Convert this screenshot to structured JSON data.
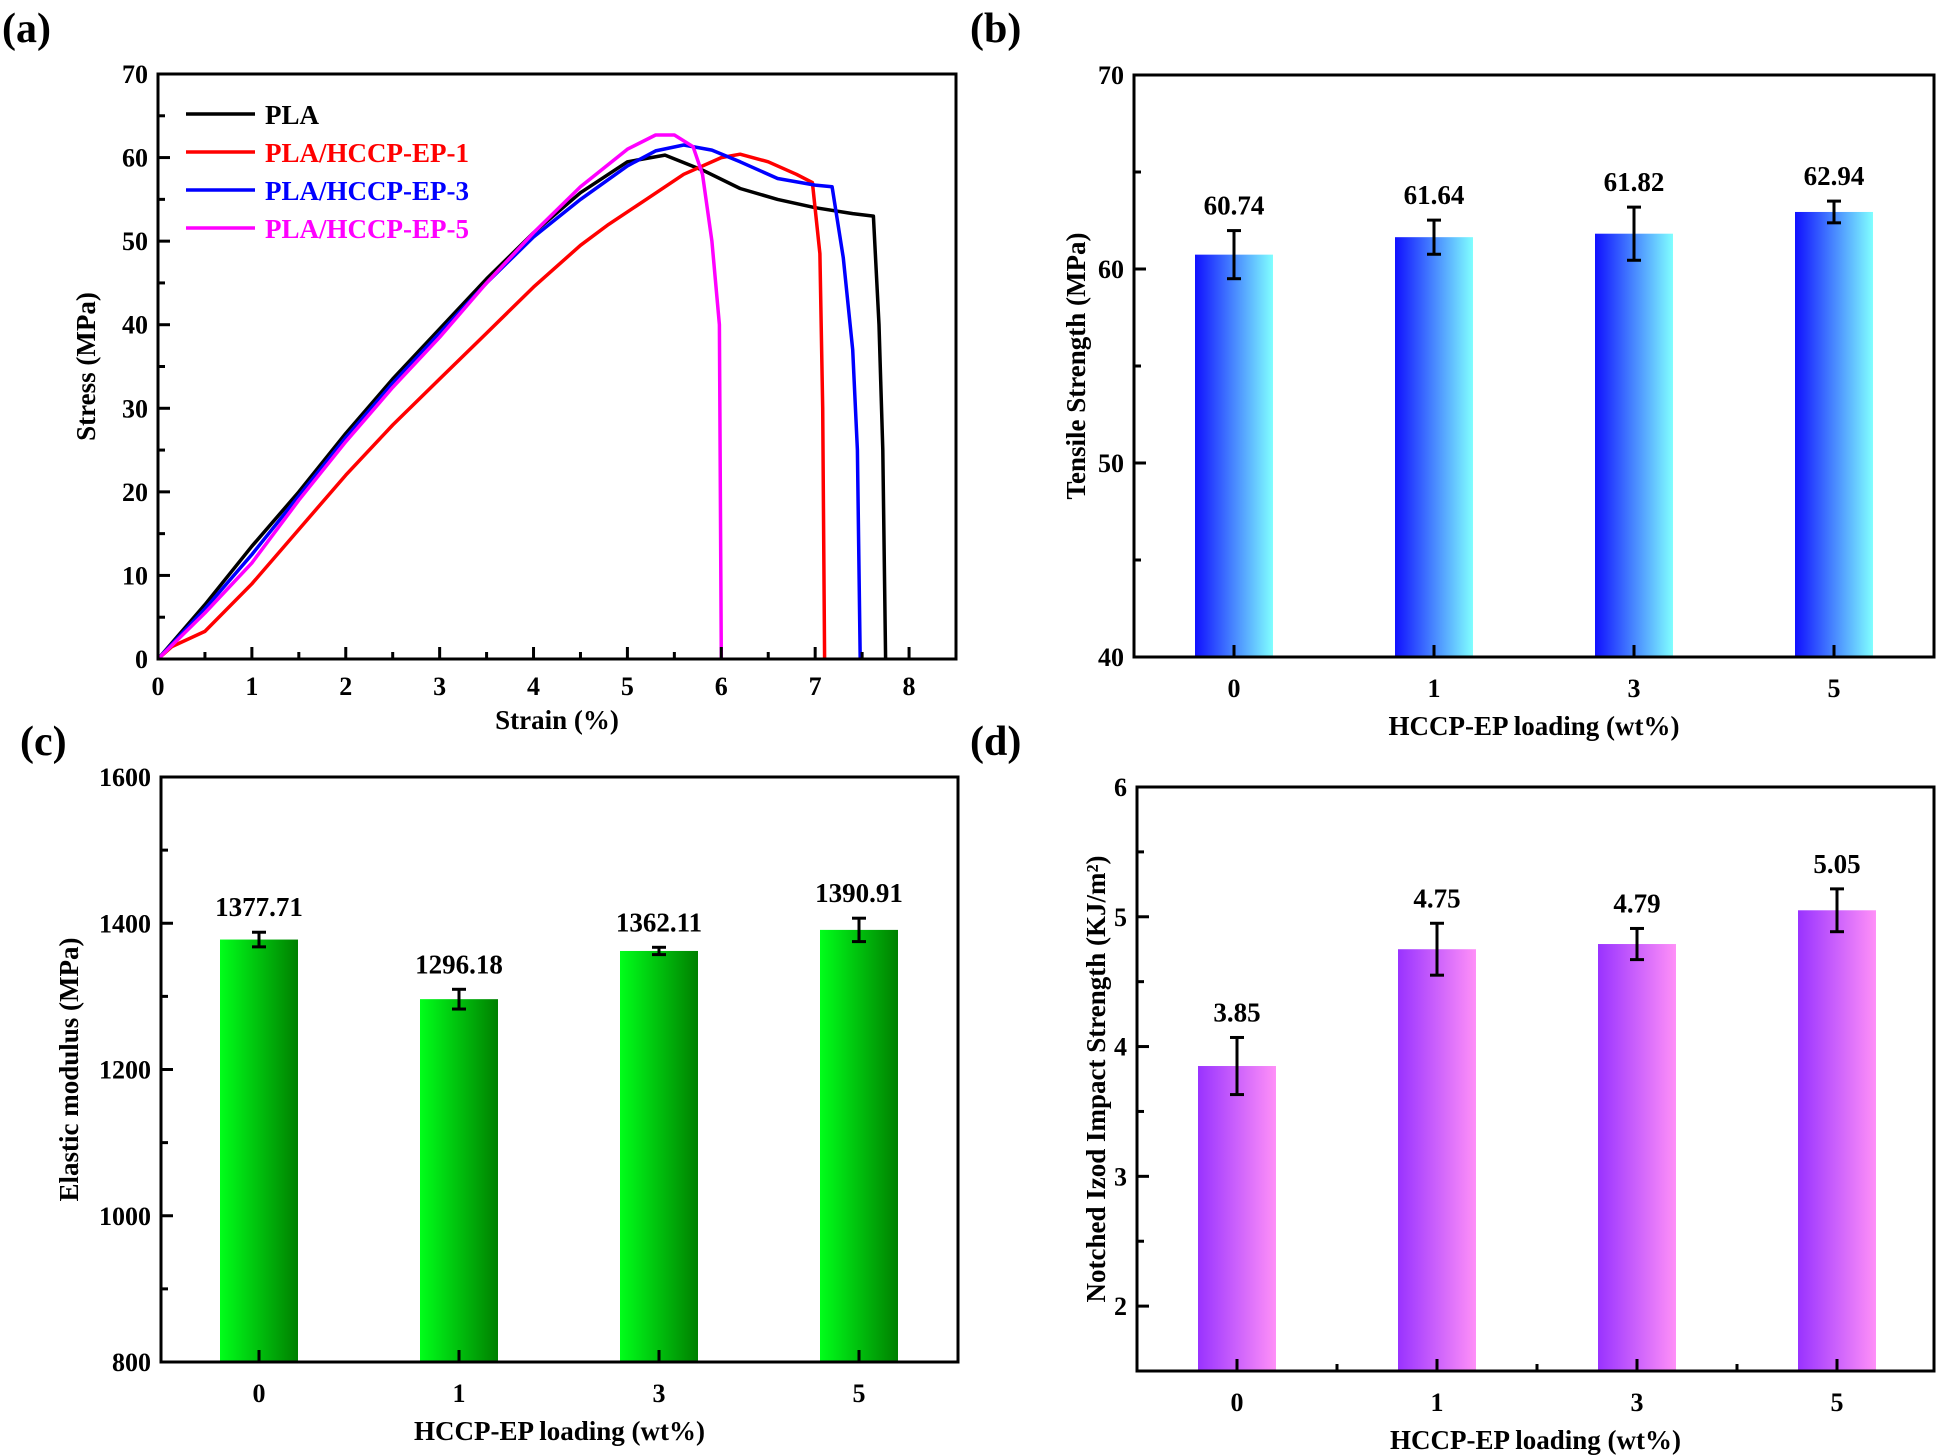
{
  "figure": {
    "panel_labels": [
      "(a)",
      "(b)",
      "(c)",
      "(d)"
    ]
  },
  "chart_data": [
    {
      "id": "a",
      "type": "line",
      "xlabel": "Strain (%)",
      "ylabel": "Stress (MPa)",
      "xlim": [
        0,
        8.5
      ],
      "ylim": [
        0,
        70
      ],
      "xticks": [
        0,
        1,
        2,
        3,
        4,
        5,
        6,
        7,
        8
      ],
      "yticks": [
        0,
        10,
        20,
        30,
        40,
        50,
        60,
        70
      ],
      "grid": false,
      "legend_position": "top-left",
      "series": [
        {
          "name": "PLA",
          "color": "#000000",
          "x": [
            0,
            0.5,
            1,
            1.5,
            2,
            2.5,
            3,
            3.5,
            4,
            4.5,
            5,
            5.4,
            5.8,
            6.2,
            6.6,
            7,
            7.4,
            7.62,
            7.68,
            7.72,
            7.75
          ],
          "y": [
            0,
            6.5,
            13.5,
            20,
            27,
            33.5,
            39.5,
            45.5,
            51,
            55.8,
            59.5,
            60.3,
            58.5,
            56.3,
            55,
            54,
            53.3,
            53,
            40,
            25,
            0
          ]
        },
        {
          "name": "PLA/HCCP-EP-1",
          "color": "#ff0000",
          "x": [
            0,
            0.15,
            0.5,
            1,
            1.5,
            2,
            2.5,
            3,
            3.5,
            4,
            4.5,
            4.8,
            5.2,
            5.6,
            6,
            6.2,
            6.5,
            6.8,
            6.97,
            7.05,
            7.08,
            7.1
          ],
          "y": [
            0,
            1.5,
            3.3,
            9,
            15.5,
            22,
            28,
            33.5,
            39,
            44.5,
            49.5,
            52,
            55,
            58,
            60,
            60.4,
            59.5,
            58,
            57,
            48.5,
            30,
            0
          ]
        },
        {
          "name": "PLA/HCCP-EP-3",
          "color": "#0000ff",
          "x": [
            0,
            0.5,
            1,
            1.5,
            2,
            2.5,
            3,
            3.5,
            4,
            4.5,
            5,
            5.3,
            5.6,
            5.9,
            6.2,
            6.6,
            7,
            7.18,
            7.3,
            7.4,
            7.45,
            7.48
          ],
          "y": [
            0,
            6,
            12.5,
            19.5,
            26.5,
            33,
            39,
            45,
            50.5,
            55,
            59,
            60.8,
            61.5,
            60.9,
            59.5,
            57.5,
            56.7,
            56.5,
            48,
            37,
            25,
            0
          ]
        },
        {
          "name": "PLA/HCCP-EP-5",
          "color": "#ff00ff",
          "x": [
            0,
            0.5,
            1,
            1.5,
            2,
            2.5,
            3,
            3.5,
            4,
            4.5,
            5,
            5.3,
            5.5,
            5.7,
            5.8,
            5.9,
            5.98,
            6
          ],
          "y": [
            0,
            5.5,
            11.5,
            19,
            26,
            32.5,
            38.5,
            45,
            51,
            56.5,
            61,
            62.7,
            62.7,
            61.3,
            58,
            50,
            40,
            0
          ]
        }
      ]
    },
    {
      "id": "b",
      "type": "bar",
      "xlabel": "HCCP-EP loading (wt%)",
      "ylabel": "Tensile Strength (MPa)",
      "categories": [
        "0",
        "1",
        "3",
        "5"
      ],
      "values": [
        60.74,
        61.64,
        61.82,
        62.94
      ],
      "errors": [
        1.24,
        0.88,
        1.37,
        0.56
      ],
      "value_labels": [
        "60.74",
        "61.64",
        "61.82",
        "62.94"
      ],
      "ylim": [
        40,
        70
      ],
      "yticks": [
        40,
        50,
        60,
        70
      ],
      "grid": false,
      "colors": {
        "start": "#1010ff",
        "end": "#80ffff"
      }
    },
    {
      "id": "c",
      "type": "bar",
      "xlabel": "HCCP-EP loading (wt%)",
      "ylabel": "Elastic modulus (MPa)",
      "categories": [
        "0",
        "1",
        "3",
        "5"
      ],
      "values": [
        1377.71,
        1296.18,
        1362.11,
        1390.91
      ],
      "errors": [
        10,
        13.5,
        5,
        16
      ],
      "value_labels": [
        "1377.71",
        "1296.18",
        "1362.11",
        "1390.91"
      ],
      "ylim": [
        800,
        1600
      ],
      "yticks": [
        800,
        1000,
        1200,
        1400,
        1600
      ],
      "grid": false,
      "colors": {
        "start": "#00ff1a",
        "end": "#008000"
      }
    },
    {
      "id": "d",
      "type": "bar",
      "xlabel": "HCCP-EP loading (wt%)",
      "ylabel": "Notched Izod Impact Strength (KJ/m²)",
      "categories": [
        "0",
        "1",
        "3",
        "5"
      ],
      "values": [
        3.85,
        4.75,
        4.79,
        5.05
      ],
      "errors": [
        0.22,
        0.2,
        0.12,
        0.165
      ],
      "value_labels": [
        "3.85",
        "4.75",
        "4.79",
        "5.05"
      ],
      "ylim": [
        1.5,
        6
      ],
      "yticks": [
        2,
        3,
        4,
        5,
        6
      ],
      "grid": false,
      "colors": {
        "start": "#9933ff",
        "end": "#ff90f8"
      }
    }
  ]
}
